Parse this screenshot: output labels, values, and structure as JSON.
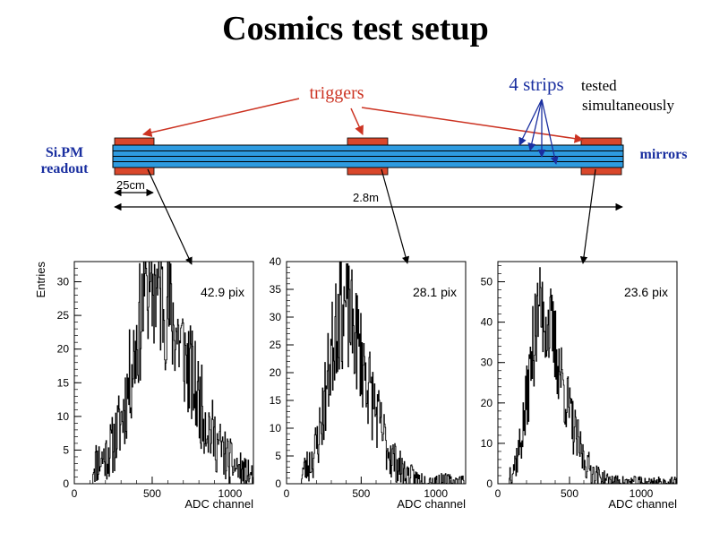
{
  "title": "Cosmics test setup",
  "labels": {
    "triggers": "triggers",
    "strips": "4 strips",
    "tested": "tested",
    "simultaneously": "simultaneously",
    "sipm_line1": "Si.PM",
    "sipm_line2": "readout",
    "mirrors": "mirrors",
    "dim_short": "25cm",
    "dim_long": "2.8m"
  },
  "colors": {
    "strip_fill": "#2e9be0",
    "trigger_fill": "#d9472b",
    "red_arrow": "#cc3322",
    "blue_text": "#1a2fa0",
    "blue_arrow": "#1a2fa0"
  },
  "chart_data": [
    {
      "type": "histogram",
      "ylabel": "Entries",
      "xlabel": "ADC channel",
      "annotation": "42.9 pix",
      "xlim": [
        0,
        1150
      ],
      "ylim": [
        0,
        33
      ],
      "xticks": [
        0,
        500,
        1000
      ],
      "yticks": [
        0,
        5,
        10,
        15,
        20,
        25,
        30
      ],
      "peak_x": 500,
      "peak_y": 26,
      "sigma_left": 120,
      "sigma_right": 230,
      "tail": 3,
      "seed": 11,
      "range": [
        120,
        1150
      ],
      "spike_values": [
        32,
        30,
        31,
        29
      ]
    },
    {
      "type": "histogram",
      "ylabel": "",
      "xlabel": "ADC channel",
      "annotation": "28.1 pix",
      "xlim": [
        0,
        1200
      ],
      "ylim": [
        0,
        40
      ],
      "xticks": [
        0,
        500,
        1000
      ],
      "yticks": [
        0,
        5,
        10,
        15,
        20,
        25,
        30,
        35,
        40
      ],
      "peak_x": 370,
      "peak_y": 29,
      "sigma_left": 90,
      "sigma_right": 170,
      "tail": 2,
      "seed": 23,
      "range": [
        100,
        1200
      ],
      "spike_values": [
        36,
        34,
        33,
        35
      ]
    },
    {
      "type": "histogram",
      "ylabel": "",
      "xlabel": "ADC channel",
      "annotation": "23.6 pix",
      "xlim": [
        0,
        1250
      ],
      "ylim": [
        0,
        55
      ],
      "xticks": [
        0,
        500,
        1000
      ],
      "yticks": [
        0,
        10,
        20,
        30,
        40,
        50
      ],
      "peak_x": 300,
      "peak_y": 40,
      "sigma_left": 80,
      "sigma_right": 150,
      "tail": 2,
      "seed": 37,
      "range": [
        80,
        1250
      ],
      "spike_values": [
        47,
        44,
        45,
        43
      ]
    }
  ]
}
